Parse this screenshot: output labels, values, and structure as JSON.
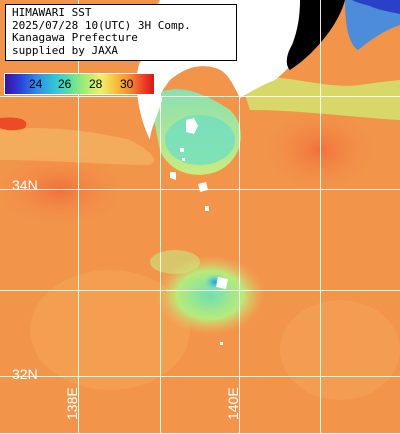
{
  "header": {
    "line1": "HIMAWARI SST",
    "line2": "2025/07/28 10(UTC) 3H Comp.",
    "line3": "Kanagawa Prefecture",
    "line4": "supplied by JAXA"
  },
  "scale": {
    "ticks": [
      "24",
      "26",
      "28",
      "30"
    ]
  },
  "grid_labels": {
    "lat_34": "34N",
    "lat_32": "32N",
    "lon_138": "138E",
    "lon_140": "140E"
  },
  "colors": {
    "land": "#ffffff",
    "bay_cold": "#000000",
    "warm_water": "#f2944a",
    "cool_water": "#7de3a0"
  }
}
